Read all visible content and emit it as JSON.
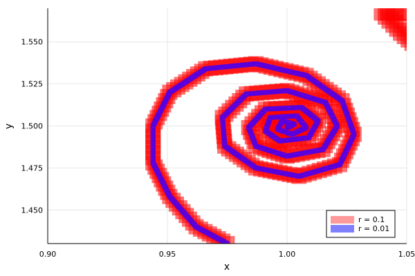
{
  "chart_data": {
    "type": "scatter",
    "title": "",
    "xlabel": "x",
    "ylabel": "y",
    "xlim": [
      0.9,
      1.05
    ],
    "ylim": [
      1.43,
      1.57
    ],
    "x_ticks": [
      "0.90",
      "0.95",
      "1.00",
      "1.05"
    ],
    "y_ticks": [
      "1.450",
      "1.475",
      "1.500",
      "1.525",
      "1.550"
    ],
    "grid": true,
    "legend_position": "bottom-right",
    "series": [
      {
        "name": "r = 0.1",
        "color": "#ff0000",
        "legend_color": "#ff9a9a",
        "marker": "square",
        "points": [
          [
            1.0,
            1.499
          ],
          [
            1.003,
            1.501
          ],
          [
            0.998,
            1.503
          ],
          [
            0.996,
            1.498
          ],
          [
            1.002,
            1.495
          ],
          [
            1.008,
            1.499
          ],
          [
            1.004,
            1.506
          ],
          [
            0.993,
            1.505
          ],
          [
            0.991,
            1.497
          ],
          [
            0.997,
            1.491
          ],
          [
            1.009,
            1.493
          ],
          [
            1.013,
            1.503
          ],
          [
            1.006,
            1.511
          ],
          [
            0.991,
            1.51
          ],
          [
            0.984,
            1.499
          ],
          [
            0.987,
            1.488
          ],
          [
            1.0,
            1.482
          ],
          [
            1.015,
            1.486
          ],
          [
            1.021,
            1.5
          ],
          [
            1.016,
            1.514
          ],
          [
            1.0,
            1.521
          ],
          [
            0.983,
            1.519
          ],
          [
            0.973,
            1.505
          ],
          [
            0.974,
            1.488
          ],
          [
            0.987,
            1.475
          ],
          [
            1.005,
            1.47
          ],
          [
            1.022,
            1.477
          ],
          [
            1.028,
            1.495
          ],
          [
            1.023,
            1.515
          ],
          [
            1.008,
            1.53
          ],
          [
            0.987,
            1.537
          ],
          [
            0.966,
            1.534
          ],
          [
            0.951,
            1.52
          ],
          [
            0.944,
            1.5
          ],
          [
            0.944,
            1.478
          ],
          [
            0.951,
            1.458
          ],
          [
            0.962,
            1.44
          ],
          [
            0.975,
            1.43
          ]
        ]
      },
      {
        "name": "",
        "color": "#ff0000",
        "legend_color": "",
        "marker": "square",
        "points": [
          [
            1.05,
            1.568
          ],
          [
            1.04,
            1.568
          ],
          [
            1.048,
            1.556
          ],
          [
            1.056,
            1.546
          ]
        ]
      },
      {
        "name": "r = 0.01",
        "color": "#5a00dc",
        "legend_color": "#8080ff",
        "marker": "square",
        "points": [
          [
            1.0,
            1.499
          ],
          [
            1.003,
            1.501
          ],
          [
            0.998,
            1.503
          ],
          [
            0.996,
            1.498
          ],
          [
            1.002,
            1.495
          ],
          [
            1.008,
            1.499
          ],
          [
            1.004,
            1.506
          ],
          [
            0.993,
            1.505
          ],
          [
            0.991,
            1.497
          ],
          [
            0.997,
            1.491
          ],
          [
            1.009,
            1.493
          ],
          [
            1.013,
            1.503
          ],
          [
            1.006,
            1.511
          ],
          [
            0.991,
            1.51
          ],
          [
            0.984,
            1.499
          ],
          [
            0.987,
            1.488
          ],
          [
            1.0,
            1.482
          ],
          [
            1.015,
            1.486
          ],
          [
            1.021,
            1.5
          ],
          [
            1.016,
            1.514
          ],
          [
            1.0,
            1.521
          ],
          [
            0.983,
            1.519
          ],
          [
            0.973,
            1.505
          ],
          [
            0.974,
            1.488
          ],
          [
            0.987,
            1.475
          ],
          [
            1.005,
            1.47
          ],
          [
            1.022,
            1.477
          ],
          [
            1.028,
            1.495
          ],
          [
            1.023,
            1.515
          ],
          [
            1.008,
            1.53
          ],
          [
            0.987,
            1.537
          ],
          [
            0.966,
            1.534
          ],
          [
            0.951,
            1.52
          ],
          [
            0.944,
            1.5
          ],
          [
            0.944,
            1.478
          ],
          [
            0.951,
            1.458
          ],
          [
            0.962,
            1.44
          ],
          [
            0.975,
            1.43
          ]
        ]
      }
    ]
  }
}
